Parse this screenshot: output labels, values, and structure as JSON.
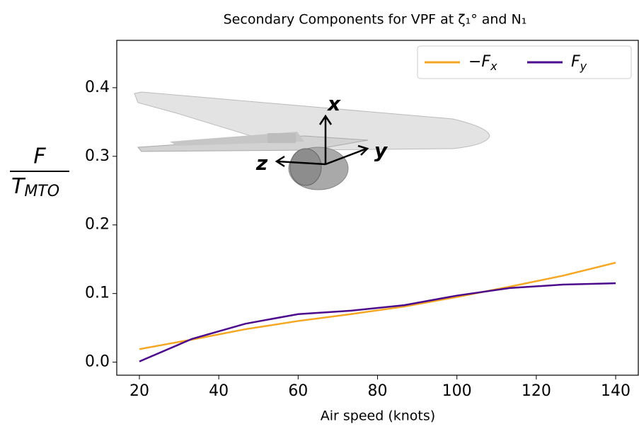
{
  "chart_data": {
    "type": "line",
    "title": "Secondary Components for VPF at ζ₁° and N₁",
    "xlabel": "Air speed (knots)",
    "ylabel_numerator": "F",
    "ylabel_denominator": "T",
    "ylabel_denominator_subscript": "MTO",
    "annotations": [
      "x",
      "y",
      "z"
    ],
    "x": [
      20,
      33.3,
      46.7,
      60,
      73.3,
      86.7,
      100,
      113.3,
      126.7,
      140
    ],
    "series": [
      {
        "name": "−F",
        "subscript": "x",
        "color": "#f5a623",
        "values": [
          0.019,
          0.033,
          0.048,
          0.06,
          0.07,
          0.081,
          0.095,
          0.11,
          0.126,
          0.145
        ]
      },
      {
        "name": "F",
        "subscript": "y",
        "color": "#4b0a8c",
        "values": [
          0.001,
          0.034,
          0.056,
          0.07,
          0.075,
          0.083,
          0.097,
          0.108,
          0.113,
          0.115
        ]
      }
    ],
    "xlim": [
      14.3,
      145.7
    ],
    "ylim": [
      -0.019,
      0.469
    ],
    "xticks": [
      20,
      40,
      60,
      80,
      100,
      120,
      140
    ],
    "yticks": [
      {
        "value": 0,
        "label": "0.0"
      },
      0.1,
      0.2,
      0.3,
      0.4
    ],
    "legend": "upper right"
  }
}
